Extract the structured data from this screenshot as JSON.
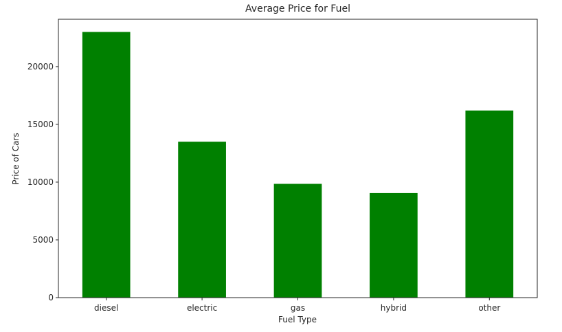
{
  "chart_data": {
    "type": "bar",
    "title": "Average Price for Fuel",
    "xlabel": "Fuel Type",
    "ylabel": "Price of Cars",
    "categories": [
      "diesel",
      "electric",
      "gas",
      "hybrid",
      "other"
    ],
    "values": [
      23000,
      13500,
      9850,
      9050,
      16200
    ],
    "ylim": [
      0,
      24100
    ],
    "yticks": [
      0,
      5000,
      10000,
      15000,
      20000
    ],
    "ytick_labels": [
      "0",
      "5000",
      "10000",
      "15000",
      "20000"
    ],
    "bar_color": "#008000",
    "grid": false,
    "legend": "none"
  }
}
